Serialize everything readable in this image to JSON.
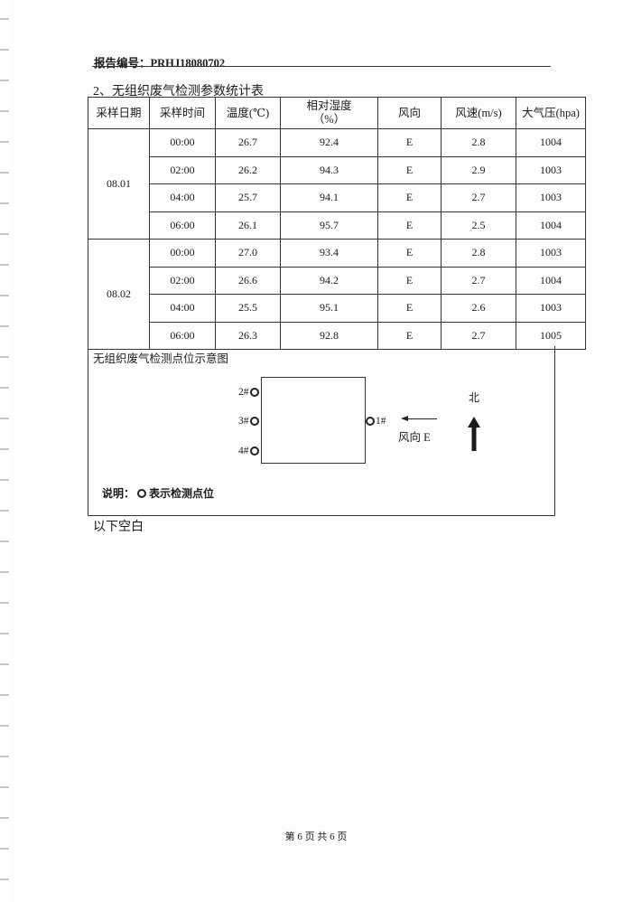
{
  "header": {
    "report_no": "报告编号：PRHJ18080702"
  },
  "section_title": "2、无组织废气检测参数统计表",
  "table": {
    "columns": [
      "采样日期",
      "采样时间",
      "温度(℃)",
      "相对湿度（%）",
      "风向",
      "风速(m/s)",
      "大气压(hpa)"
    ],
    "groups": [
      {
        "date": "08.01",
        "rows": [
          [
            "00:00",
            "26.7",
            "92.4",
            "E",
            "2.8",
            "1004"
          ],
          [
            "02:00",
            "26.2",
            "94.3",
            "E",
            "2.9",
            "1003"
          ],
          [
            "04:00",
            "25.7",
            "94.1",
            "E",
            "2.7",
            "1003"
          ],
          [
            "06:00",
            "26.1",
            "95.7",
            "E",
            "2.5",
            "1004"
          ]
        ]
      },
      {
        "date": "08.02",
        "rows": [
          [
            "00:00",
            "27.0",
            "93.4",
            "E",
            "2.8",
            "1003"
          ],
          [
            "02:00",
            "26.6",
            "94.2",
            "E",
            "2.7",
            "1004"
          ],
          [
            "04:00",
            "25.5",
            "95.1",
            "E",
            "2.6",
            "1003"
          ],
          [
            "06:00",
            "26.3",
            "92.8",
            "E",
            "2.7",
            "1005"
          ]
        ]
      }
    ]
  },
  "diagram": {
    "title": "无组织废气检测点位示意图",
    "points": [
      "1#",
      "2#",
      "3#",
      "4#"
    ],
    "wind_label": "风向 E",
    "north_label": "北",
    "note_prefix": "说明：",
    "note_text": "表示检测点位"
  },
  "blank_note": "以下空白",
  "footer": {
    "page": "第 6 页 共 6 页"
  }
}
